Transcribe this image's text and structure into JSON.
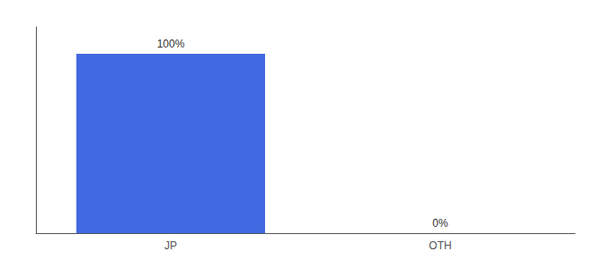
{
  "chart_data": {
    "type": "bar",
    "categories": [
      "JP",
      "OTH"
    ],
    "values": [
      100,
      0
    ],
    "value_labels": [
      "100%",
      "0%"
    ],
    "data_labels": true,
    "color": "#4169E1",
    "ylim": [
      0,
      115
    ],
    "tick_labels": "x",
    "grid": false
  }
}
